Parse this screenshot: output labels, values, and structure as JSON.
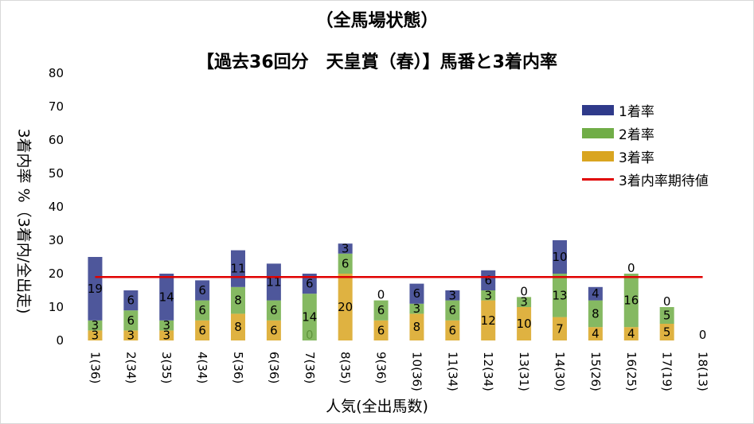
{
  "title": "（全馬場状態）",
  "subtitle": "【過去36回分　天皇賞（春）】馬番と3着内率",
  "xlabel": "人気(全出馬数)",
  "ylabel": "3着内率 %（3着内/全出走)",
  "legend": {
    "first": "1着率",
    "second": "2着率",
    "third": "3着率",
    "expected": "3着内率期待値"
  },
  "colors": {
    "first": "#2f3a8a",
    "second": "#70ad47",
    "third": "#d9a520",
    "expected": "#e00000"
  },
  "chart_data": {
    "type": "bar",
    "stacked": true,
    "categories": [
      "1(36)",
      "2(34)",
      "3(35)",
      "4(34)",
      "5(36)",
      "6(36)",
      "7(36)",
      "8(35)",
      "9(36)",
      "10(36)",
      "11(34)",
      "12(34)",
      "13(31)",
      "14(30)",
      "15(26)",
      "16(25)",
      "17(19)",
      "18(13)"
    ],
    "series": [
      {
        "name": "3着率",
        "values": [
          3,
          3,
          3,
          6,
          8,
          6,
          0,
          20,
          6,
          8,
          6,
          12,
          10,
          7,
          4,
          4,
          5,
          0
        ]
      },
      {
        "name": "2着率",
        "values": [
          3,
          6,
          3,
          6,
          8,
          6,
          14,
          6,
          6,
          3,
          6,
          3,
          3,
          13,
          8,
          16,
          5,
          0
        ]
      },
      {
        "name": "1着率",
        "values": [
          19,
          6,
          14,
          6,
          11,
          11,
          6,
          3,
          0,
          6,
          3,
          6,
          0,
          10,
          4,
          0,
          0,
          0
        ]
      }
    ],
    "data_labels": {
      "3着率": [
        "3",
        "3",
        "3",
        "6",
        "8",
        "6",
        "0",
        "20",
        "6",
        "8",
        "6",
        "12",
        "10",
        "7",
        "4",
        "4",
        "5",
        "0"
      ],
      "2着率": [
        "3",
        "6",
        "3",
        "6",
        "8",
        "6",
        "14",
        "6",
        "6",
        "3",
        "6",
        "3",
        "3",
        "13",
        "8",
        "16",
        "5",
        ""
      ],
      "1着率": [
        "19",
        "6",
        "14",
        "6",
        "11",
        "11",
        "6",
        "3",
        "0",
        "6",
        "3",
        "6",
        "0",
        "10",
        "4",
        "0",
        "0",
        ""
      ]
    },
    "reference_line": {
      "name": "3着内率期待値",
      "value": 19
    },
    "ylim": [
      0,
      80
    ],
    "yticks": [
      0,
      10,
      20,
      30,
      40,
      50,
      60,
      70,
      80
    ],
    "grid": false,
    "legend_position": "right"
  }
}
